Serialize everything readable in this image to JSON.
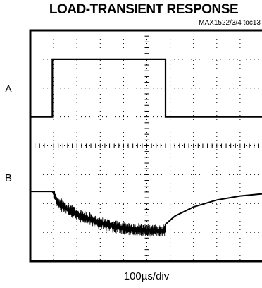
{
  "title": "LOAD-TRANSIENT RESPONSE",
  "reference": "MAX1522/3/4 toc13",
  "channel_labels": [
    "A",
    "B"
  ],
  "time_base": "100µs/div",
  "chart_data": {
    "type": "line",
    "title": "LOAD-TRANSIENT RESPONSE",
    "xlabel": "100µs/div",
    "ylabel": "",
    "grid": true,
    "divisions": {
      "x": 10,
      "y": 8
    },
    "xlim": [
      0,
      10
    ],
    "series": [
      {
        "name": "A",
        "x": [
          0,
          0.95,
          0.95,
          5.8,
          5.8,
          10
        ],
        "y": [
          5.0,
          5.0,
          7.0,
          7.0,
          5.0,
          5.0
        ]
      },
      {
        "name": "B",
        "x": [
          0,
          0.95,
          1.2,
          2.0,
          3.0,
          4.0,
          5.0,
          5.8,
          5.8,
          6.2,
          7.0,
          8.0,
          9.0,
          10
        ],
        "y": [
          2.42,
          2.42,
          2.0,
          1.62,
          1.32,
          1.14,
          1.06,
          1.05,
          1.28,
          1.56,
          1.88,
          2.12,
          2.26,
          2.34
        ]
      }
    ]
  }
}
